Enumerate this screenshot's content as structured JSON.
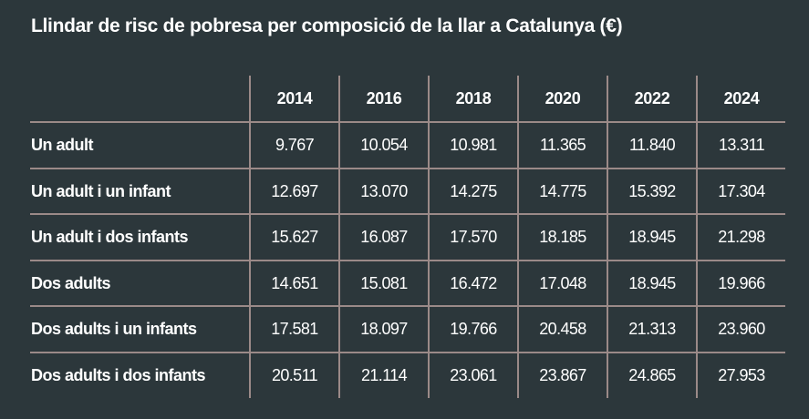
{
  "title": "Llindar de risc de pobresa per composició de la llar a Catalunya (€)",
  "table": {
    "columns": [
      "2014",
      "2016",
      "2018",
      "2020",
      "2022",
      "2024"
    ],
    "rows": [
      {
        "label": "Un adult",
        "values": [
          "9.767",
          "10.054",
          "10.981",
          "11.365",
          "11.840",
          "13.311"
        ]
      },
      {
        "label": "Un adult i un infant",
        "values": [
          "12.697",
          "13.070",
          "14.275",
          "14.775",
          "15.392",
          "17.304"
        ]
      },
      {
        "label": "Un adult i dos infants",
        "values": [
          "15.627",
          "16.087",
          "17.570",
          "18.185",
          "18.945",
          "21.298"
        ]
      },
      {
        "label": "Dos adults",
        "values": [
          "14.651",
          "15.081",
          "16.472",
          "17.048",
          "18.945",
          "19.966"
        ]
      },
      {
        "label": "Dos adults i un infants",
        "values": [
          "17.581",
          "18.097",
          "19.766",
          "20.458",
          "21.313",
          "23.960"
        ]
      },
      {
        "label": "Dos adults i dos infants",
        "values": [
          "20.511",
          "21.114",
          "23.061",
          "23.867",
          "24.865",
          "27.953"
        ]
      }
    ]
  },
  "colors": {
    "background": "#2c373b",
    "grid": "#9b8a88",
    "text": "#ffffff"
  }
}
